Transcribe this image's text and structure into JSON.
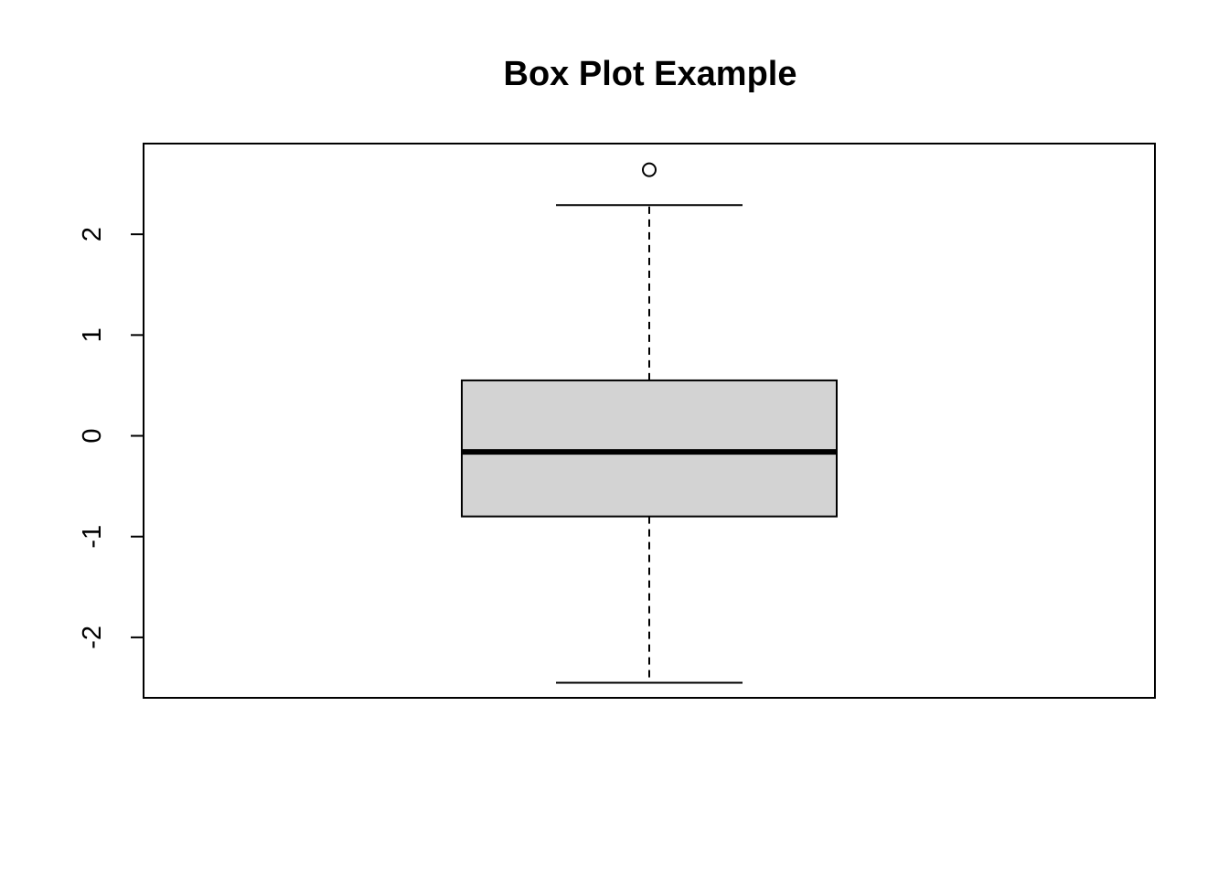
{
  "chart_data": {
    "type": "box",
    "title": "Box Plot Example",
    "xlabel": "",
    "ylabel": "",
    "ylim": [
      -2.6,
      2.9
    ],
    "y_ticks": [
      -2,
      -1,
      0,
      1,
      2
    ],
    "y_tick_labels": [
      "-2",
      "-1",
      "0",
      "1",
      "2"
    ],
    "grid": false,
    "box": {
      "min": -2.45,
      "q1": -0.8,
      "median": -0.16,
      "q3": 0.55,
      "max": 2.29,
      "outliers": [
        2.64
      ]
    },
    "colors": {
      "box_fill": "#d3d3d3",
      "line": "#000000",
      "background": "#ffffff"
    }
  }
}
